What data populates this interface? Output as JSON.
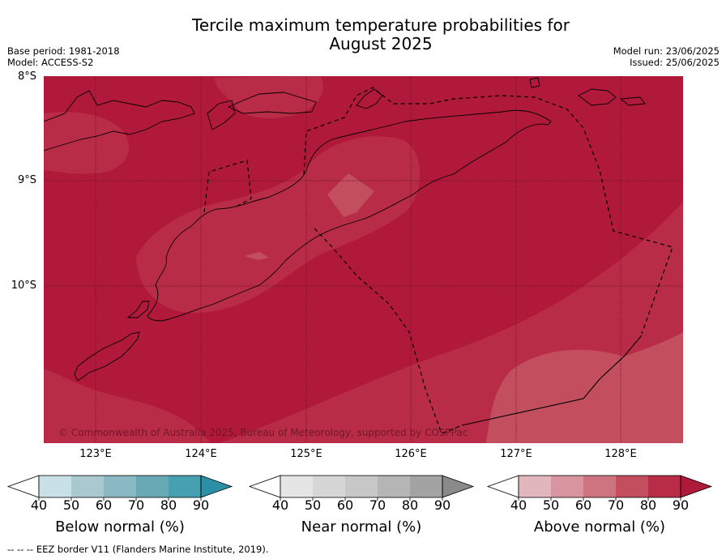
{
  "title_line1": "Tercile maximum temperature probabilities for",
  "title_line2": "August 2025",
  "base_period": "Base period: 1981-2018",
  "model": "Model: ACCESS-S2",
  "model_run": "Model run: 23/06/2025",
  "issued": "Issued: 25/06/2025",
  "copyright": "© Commonwealth of Australia 2025, Bureau of Meteorology, supported by COSPPac",
  "lat_labels": [
    "8°S",
    "9°S",
    "10°S"
  ],
  "lon_labels": [
    "123°E",
    "124°E",
    "125°E",
    "126°E",
    "127°E",
    "128°E"
  ],
  "colorbars": [
    {
      "label": "Below normal (%)",
      "ticks": [
        "40",
        "50",
        "60",
        "70",
        "80",
        "90"
      ],
      "colors": [
        "#c9e0e6",
        "#a9c8cf",
        "#8ab9c3",
        "#69a8b5",
        "#47a0b1",
        "#2b8fa5"
      ]
    },
    {
      "label": "Near normal (%)",
      "ticks": [
        "40",
        "50",
        "60",
        "70",
        "80",
        "90"
      ],
      "colors": [
        "#e5e5e5",
        "#d6d6d6",
        "#c7c7c7",
        "#b5b5b5",
        "#a3a3a3",
        "#8a8a8a"
      ]
    },
    {
      "label": "Above normal (%)",
      "ticks": [
        "40",
        "50",
        "60",
        "70",
        "80",
        "90"
      ],
      "colors": [
        "#e2b6bd",
        "#d9959f",
        "#cd7480",
        "#c24e5e",
        "#b92c47",
        "#b0193a"
      ]
    }
  ],
  "footer": "--  --  -- EEZ border V11 (Flanders Marine Institute, 2019)."
}
